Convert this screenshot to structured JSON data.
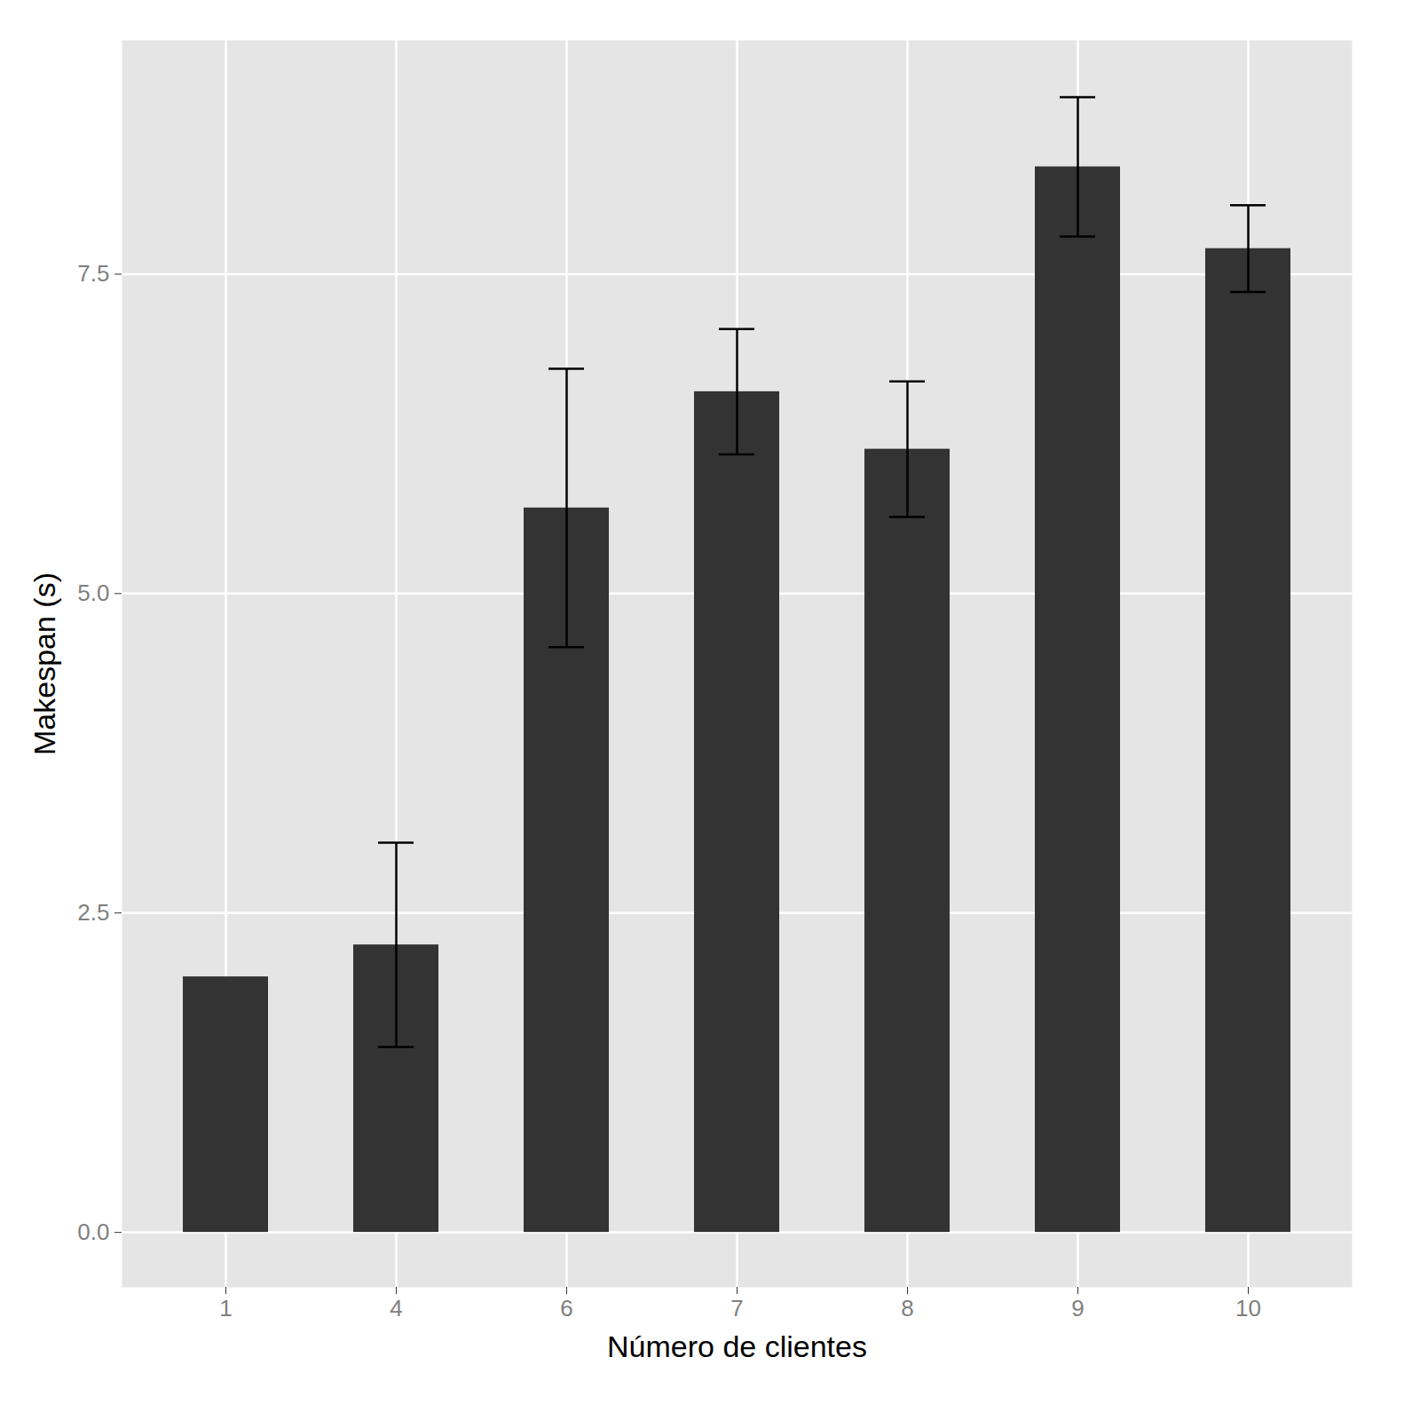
{
  "chart_data": {
    "type": "bar",
    "x_label": "Número de clientes",
    "y_label": "Makespan (s)",
    "categories": [
      "1",
      "4",
      "6",
      "7",
      "8",
      "9",
      "10"
    ],
    "values": [
      2.0,
      2.25,
      5.67,
      6.58,
      6.13,
      8.34,
      7.7
    ],
    "errors": [
      null,
      0.8,
      1.09,
      0.49,
      0.53,
      0.545,
      0.34
    ],
    "color": "#333333",
    "ylim": [
      -0.43,
      9.33
    ],
    "yticks": [
      {
        "value": 0,
        "label": "0.0"
      },
      2.5,
      {
        "value": 5,
        "label": "5.0"
      },
      7.5
    ],
    "grid": true
  }
}
